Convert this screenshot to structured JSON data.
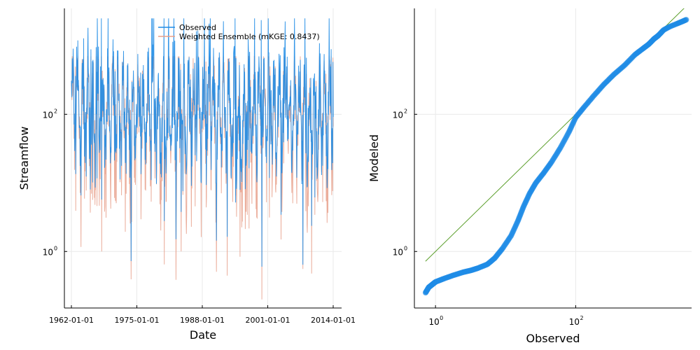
{
  "chart_data": [
    {
      "type": "line",
      "xlabel": "Date",
      "ylabel": "Streamflow",
      "y_scale": "log10",
      "ylim": [
        0.15,
        3500
      ],
      "x_ticks": [
        "1962-01-01",
        "1975-01-01",
        "1988-01-01",
        "2001-01-01",
        "2014-01-01"
      ],
      "y_ticks": [
        {
          "value": 1,
          "label": "10^0"
        },
        {
          "value": 100,
          "label": "10^2"
        }
      ],
      "grid": true,
      "legend": "top-right",
      "series": [
        {
          "name": "Observed",
          "color": "#1f8ce6",
          "summary": {
            "min": 0.6,
            "max": 2500
          }
        },
        {
          "name": "Weighted Ensemble (mKGE: 0.8437)",
          "color": "#e8a08b",
          "summary": {
            "min": 0.2,
            "max": 700
          }
        }
      ]
    },
    {
      "type": "scatter",
      "xlabel": "Observed",
      "ylabel": "Modeled",
      "x_scale": "log10",
      "y_scale": "log10",
      "xlim": [
        0.5,
        4500
      ],
      "ylim": [
        0.15,
        3500
      ],
      "x_ticks": [
        {
          "value": 1,
          "label": "10^0"
        },
        {
          "value": 100,
          "label": "10^2"
        }
      ],
      "y_ticks": [
        {
          "value": 1,
          "label": "10^0"
        },
        {
          "value": 100,
          "label": "10^2"
        }
      ],
      "grid": true,
      "reference_line": {
        "color": "#5a9e2a",
        "from": [
          0.72,
          0.72
        ],
        "to": [
          3800,
          3800
        ]
      },
      "points_color": "#1f8ce6",
      "quantile_curve": [
        [
          0.72,
          0.25
        ],
        [
          0.8,
          0.3
        ],
        [
          0.9,
          0.33
        ],
        [
          1.0,
          0.36
        ],
        [
          1.3,
          0.4
        ],
        [
          1.8,
          0.45
        ],
        [
          2.5,
          0.5
        ],
        [
          3.2,
          0.53
        ],
        [
          4.0,
          0.57
        ],
        [
          5.5,
          0.65
        ],
        [
          7,
          0.8
        ],
        [
          9,
          1.1
        ],
        [
          12,
          1.7
        ],
        [
          15,
          2.8
        ],
        [
          18,
          4.5
        ],
        [
          22,
          7
        ],
        [
          27,
          10
        ],
        [
          35,
          14
        ],
        [
          45,
          20
        ],
        [
          60,
          32
        ],
        [
          80,
          55
        ],
        [
          100,
          90
        ],
        [
          130,
          125
        ],
        [
          180,
          185
        ],
        [
          250,
          270
        ],
        [
          350,
          380
        ],
        [
          500,
          520
        ],
        [
          700,
          740
        ],
        [
          900,
          900
        ],
        [
          1100,
          1050
        ],
        [
          1300,
          1250
        ],
        [
          1500,
          1400
        ],
        [
          1800,
          1700
        ],
        [
          2200,
          1900
        ],
        [
          2800,
          2100
        ],
        [
          3300,
          2250
        ],
        [
          3800,
          2400
        ]
      ]
    }
  ]
}
